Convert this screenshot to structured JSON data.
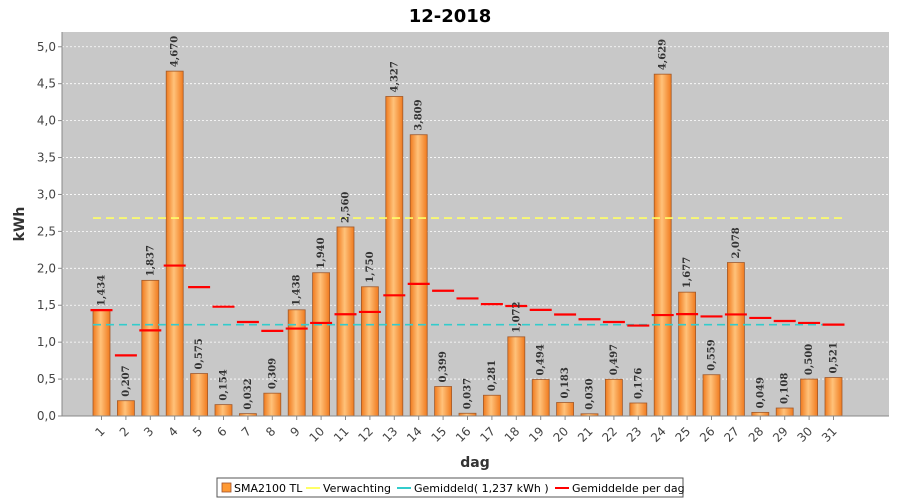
{
  "chart_data": {
    "type": "bar",
    "title": "12-2018",
    "xlabel": "dag",
    "ylabel": "kWh",
    "ylim": [
      0,
      5.2
    ],
    "yticks": [
      "0,0",
      "0,5",
      "1,0",
      "1,5",
      "2,0",
      "2,5",
      "3,0",
      "3,5",
      "4,0",
      "4,5",
      "5,0"
    ],
    "ytick_values": [
      0,
      0.5,
      1,
      1.5,
      2,
      2.5,
      3,
      3.5,
      4,
      4.5,
      5
    ],
    "grid": true,
    "legend_position": "bottom",
    "categories": [
      "1",
      "2",
      "3",
      "4",
      "5",
      "6",
      "7",
      "8",
      "9",
      "10",
      "11",
      "12",
      "13",
      "14",
      "15",
      "16",
      "17",
      "18",
      "19",
      "20",
      "21",
      "22",
      "23",
      "24",
      "25",
      "26",
      "27",
      "28",
      "29",
      "30",
      "31"
    ],
    "series": [
      {
        "name": "SMA2100 TL",
        "type": "bar",
        "color": "#ff9933",
        "values": [
          1.434,
          0.207,
          1.837,
          4.67,
          0.575,
          0.154,
          0.032,
          0.309,
          1.438,
          1.94,
          2.56,
          1.75,
          4.327,
          3.809,
          0.399,
          0.037,
          0.281,
          1.072,
          0.494,
          0.183,
          0.03,
          0.497,
          0.176,
          4.629,
          1.677,
          0.559,
          2.078,
          0.049,
          0.108,
          0.5,
          0.521
        ],
        "labels": [
          "1,434",
          "0,207",
          "1,837",
          "4,670",
          "0,575",
          "0,154",
          "0,032",
          "0,309",
          "1,438",
          "1,940",
          "2,560",
          "1,750",
          "4,327",
          "3,809",
          "0,399",
          "0,037",
          "0,281",
          "1,072",
          "0,494",
          "0,183",
          "0,030",
          "0,497",
          "0,176",
          "4,629",
          "1,677",
          "0,559",
          "2,078",
          "0,049",
          "0,108",
          "0,500",
          "0,521"
        ]
      },
      {
        "name": "Verwachting",
        "type": "line",
        "color": "#ffff66",
        "value": 2.68
      },
      {
        "name": "Gemiddeld( 1,237 kWh )",
        "type": "line",
        "color": "#33cccc",
        "value": 1.237
      },
      {
        "name": "Gemiddelde per dag",
        "type": "markers",
        "color": "#ff0000",
        "values": [
          1.434,
          0.821,
          1.159,
          2.037,
          1.745,
          1.48,
          1.273,
          1.153,
          1.184,
          1.26,
          1.378,
          1.409,
          1.634,
          1.789,
          1.696,
          1.592,
          1.515,
          1.49,
          1.437,
          1.374,
          1.31,
          1.273,
          1.225,
          1.367,
          1.38,
          1.348,
          1.375,
          1.328,
          1.286,
          1.26,
          1.237
        ]
      }
    ]
  }
}
